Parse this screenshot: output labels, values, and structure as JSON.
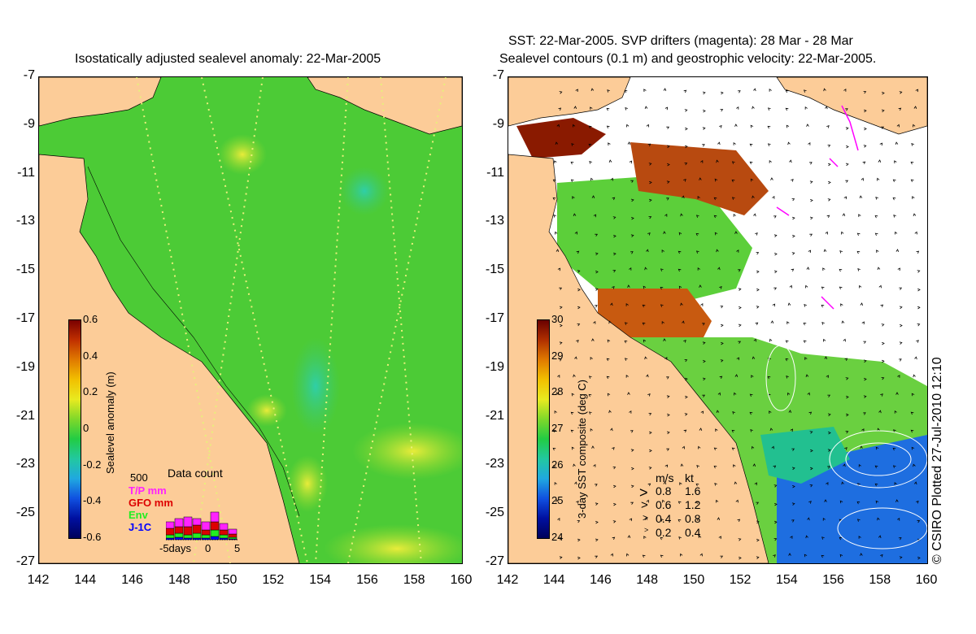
{
  "left_panel": {
    "title": "Isostatically adjusted sealevel anomaly: 22-Mar-2005",
    "y_ticks": [
      "-7",
      "-9",
      "-11",
      "-13",
      "-15",
      "-17",
      "-19",
      "-21",
      "-23",
      "-25",
      "-27"
    ],
    "x_ticks": [
      "142",
      "144",
      "146",
      "148",
      "150",
      "152",
      "154",
      "156",
      "158",
      "160"
    ],
    "colorbar": {
      "label": "Sealevel anomaly (m)",
      "ticks": [
        "0.6",
        "0.4",
        "0.2",
        "0",
        "-0.2",
        "-0.4",
        "-0.6"
      ],
      "range": [
        -0.6,
        0.6
      ]
    },
    "data_count": {
      "title": "Data count",
      "max_label": "500",
      "series": [
        {
          "label": "T/P mm",
          "color": "#ff22ff"
        },
        {
          "label": "GFO mm",
          "color": "#dd0000"
        },
        {
          "label": "Env",
          "color": "#22ee22"
        },
        {
          "label": "J-1C",
          "color": "#0000ff"
        }
      ],
      "x_label": "-5days",
      "x_ticks": [
        "0",
        "5"
      ]
    }
  },
  "right_panel": {
    "title_line1": "SST: 22-Mar-2005. SVP drifters (magenta): 28 Mar - 28 Mar",
    "title_line2": "Sealevel contours (0.1 m) and geostrophic velocity: 22-Mar-2005.",
    "y_ticks": [
      "-7",
      "-9",
      "-11",
      "-13",
      "-15",
      "-17",
      "-19",
      "-21",
      "-23",
      "-25",
      "-27"
    ],
    "x_ticks": [
      "142",
      "144",
      "146",
      "148",
      "150",
      "152",
      "154",
      "156",
      "158",
      "160"
    ],
    "colorbar": {
      "label": "3-day SST composite (deg C)",
      "ticks": [
        "30",
        "29",
        "28",
        "27",
        "26",
        "25",
        "24"
      ],
      "range": [
        24,
        30
      ]
    },
    "velocity_legend": {
      "header_ms": "m/s",
      "header_kt": "kt",
      "rows": [
        {
          "ms": "0.8",
          "kt": "1.6"
        },
        {
          "ms": "0.6",
          "kt": "1.2"
        },
        {
          "ms": "0.4",
          "kt": "0.8"
        },
        {
          "ms": "0.2",
          "kt": "0.4"
        }
      ]
    }
  },
  "credit": "© CSIRO Plotted 27-Jul-2010 12:10",
  "colors": {
    "land": "#fccc98",
    "sla_green": "#44cc33",
    "sst_cloud": "#ffffff",
    "drifter": "#ff00ff"
  }
}
